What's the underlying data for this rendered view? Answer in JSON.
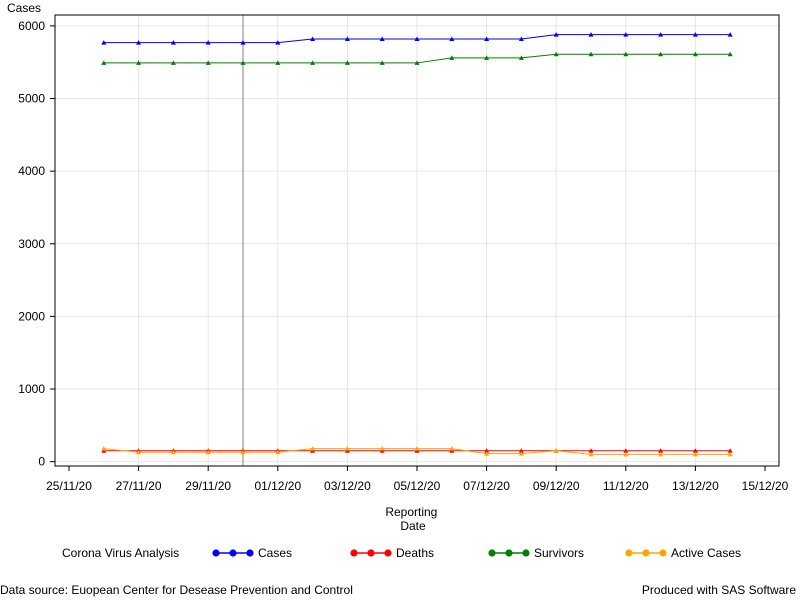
{
  "chart_data": {
    "type": "line",
    "ylabel": "Cases",
    "xlabel": [
      "Reporting",
      "Date"
    ],
    "x_ticks": [
      "25/11/20",
      "27/11/20",
      "29/11/20",
      "01/12/20",
      "03/12/20",
      "05/12/20",
      "07/12/20",
      "09/12/20",
      "11/12/20",
      "13/12/20",
      "15/12/20"
    ],
    "y_ticks": [
      0,
      1000,
      2000,
      3000,
      4000,
      5000,
      6000
    ],
    "ylim": [
      -60,
      6150
    ],
    "xlim": [
      "25/11/20",
      "15/12/20"
    ],
    "grid": true,
    "reference_line_x": "30/11/20",
    "legend_position": "bottom",
    "legend_title": "Corona Virus Analysis",
    "x": [
      "26/11/20",
      "27/11/20",
      "28/11/20",
      "29/11/20",
      "30/11/20",
      "01/12/20",
      "02/12/20",
      "03/12/20",
      "04/12/20",
      "05/12/20",
      "06/12/20",
      "07/12/20",
      "08/12/20",
      "09/12/20",
      "10/12/20",
      "11/12/20",
      "12/12/20",
      "13/12/20",
      "14/12/20"
    ],
    "series": [
      {
        "name": "Cases",
        "color": "#0000ff",
        "values": [
          5770,
          5770,
          5770,
          5770,
          5770,
          5770,
          5820,
          5820,
          5820,
          5820,
          5820,
          5820,
          5820,
          5880,
          5880,
          5880,
          5880,
          5880,
          5880
        ]
      },
      {
        "name": "Deaths",
        "color": "#ff0000",
        "values": [
          150,
          150,
          150,
          150,
          150,
          150,
          150,
          150,
          150,
          150,
          150,
          150,
          150,
          150,
          150,
          150,
          150,
          150,
          150
        ]
      },
      {
        "name": "Survivors",
        "color": "#008000",
        "values": [
          5490,
          5490,
          5490,
          5490,
          5490,
          5490,
          5490,
          5490,
          5490,
          5490,
          5560,
          5560,
          5560,
          5610,
          5610,
          5610,
          5610,
          5610,
          5610
        ]
      },
      {
        "name": "Active Cases",
        "color": "#ffa500",
        "values": [
          180,
          130,
          130,
          130,
          130,
          130,
          180,
          180,
          180,
          180,
          180,
          110,
          110,
          150,
          100,
          100,
          100,
          100,
          100
        ]
      }
    ]
  },
  "footer": {
    "left": "Data source: Euopean Center for Desease Prevention and Control",
    "right": "Produced with SAS Software"
  }
}
